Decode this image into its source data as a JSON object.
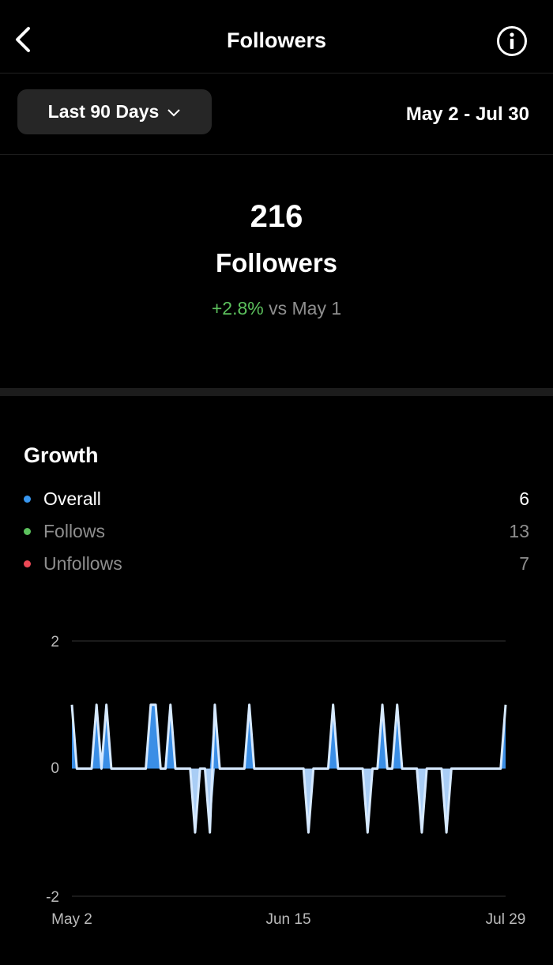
{
  "header": {
    "title": "Followers",
    "back_icon": "chevron-left-icon",
    "info_icon": "info-circle-icon"
  },
  "filter": {
    "range_label": "Last 90 Days",
    "date_range": "May 2 - Jul 30"
  },
  "summary": {
    "count": "216",
    "label": "Followers",
    "change": "+2.8%",
    "comparison": "vs May 1"
  },
  "growth": {
    "title": "Growth",
    "legend": [
      {
        "label": "Overall",
        "value": "6",
        "color": "#3897f0"
      },
      {
        "label": "Follows",
        "value": "13",
        "color": "#5cc15d"
      },
      {
        "label": "Unfollows",
        "value": "7",
        "color": "#ed4956"
      }
    ]
  },
  "chart_data": {
    "type": "area",
    "y_ticks": [
      "2",
      "0",
      "-2"
    ],
    "ylim": [
      -2,
      2
    ],
    "x_ticks": [
      "May 2",
      "Jun 15",
      "Jul 29"
    ],
    "grid": true,
    "colors": {
      "positive": "#3a8ee6",
      "negative": "#a9cdf5",
      "line": "#d6e9ff"
    },
    "values": [
      1,
      0,
      0,
      0,
      0,
      1,
      0,
      1,
      0,
      0,
      0,
      0,
      0,
      0,
      0,
      0,
      1,
      1,
      0,
      0,
      1,
      0,
      0,
      0,
      0,
      -1,
      0,
      0,
      -1,
      1,
      0,
      0,
      0,
      0,
      0,
      0,
      1,
      0,
      0,
      0,
      0,
      0,
      0,
      0,
      0,
      0,
      0,
      0,
      -1,
      0,
      0,
      0,
      0,
      1,
      0,
      0,
      0,
      0,
      0,
      0,
      -1,
      0,
      0,
      1,
      0,
      0,
      1,
      0,
      0,
      0,
      0,
      -1,
      0,
      0,
      0,
      0,
      -1,
      0,
      0,
      0,
      0,
      0,
      0,
      0,
      0,
      0,
      0,
      0,
      1
    ]
  }
}
